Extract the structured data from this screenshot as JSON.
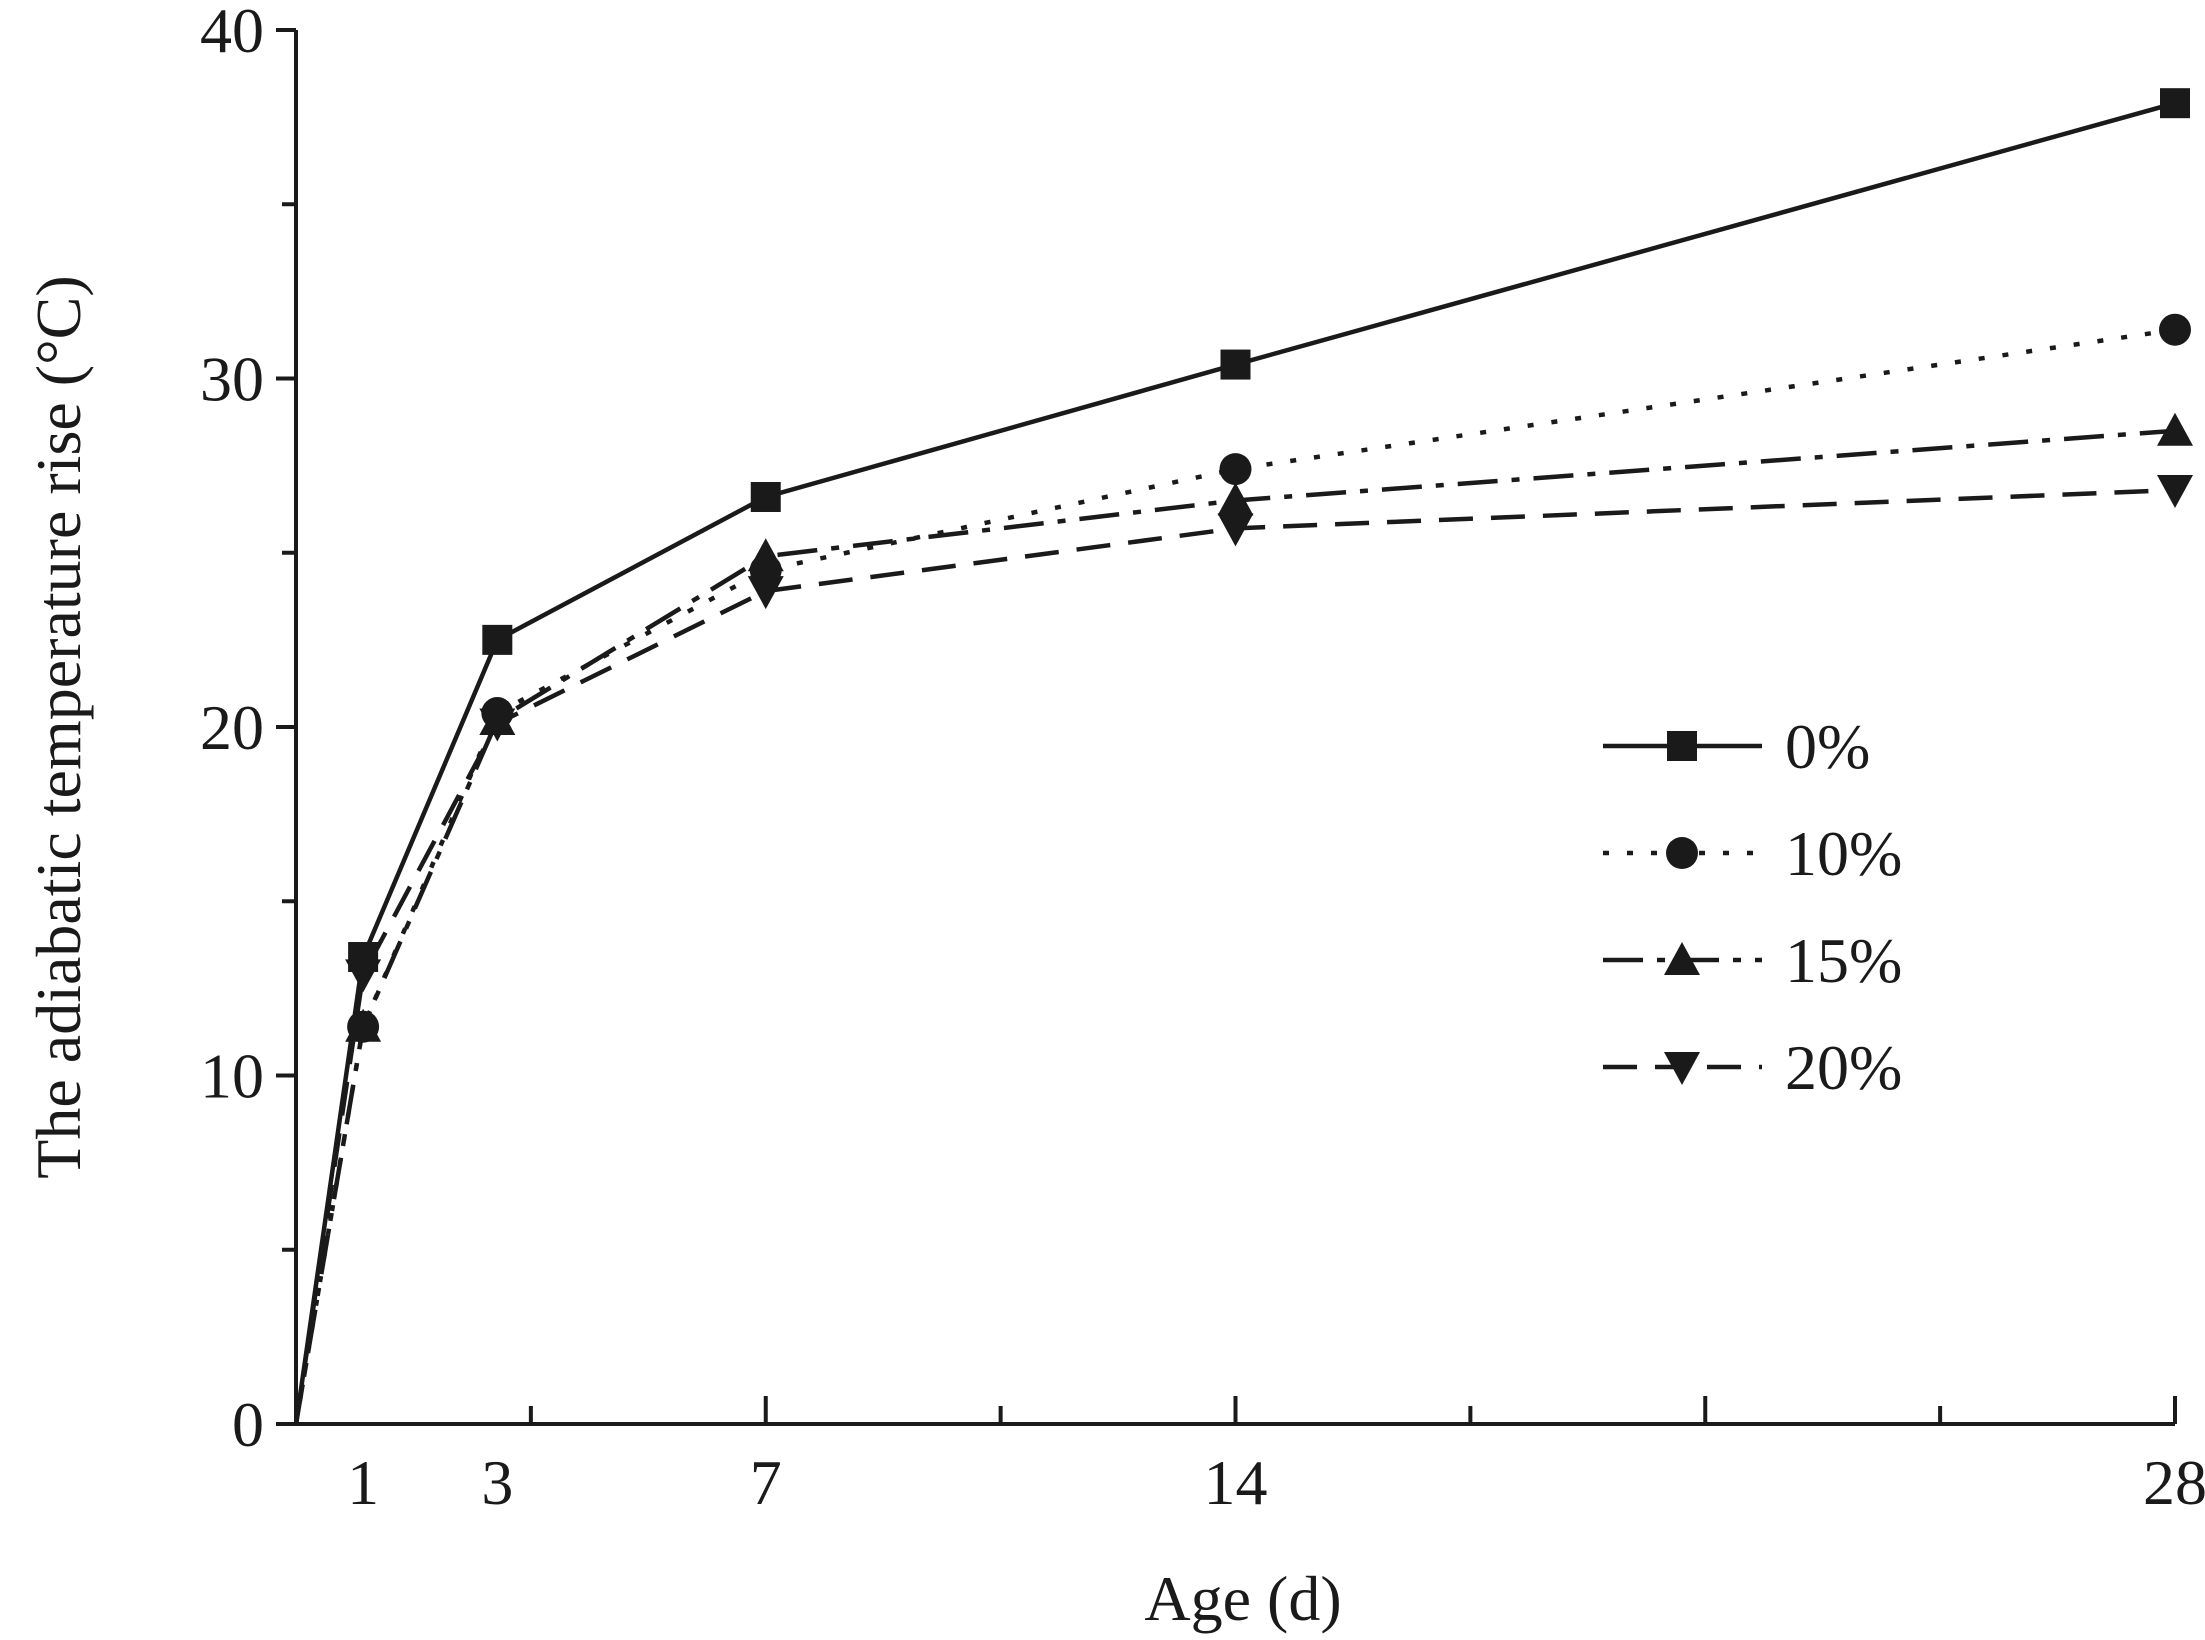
{
  "chart_data": {
    "type": "line",
    "title": "",
    "xlabel": "Age (d)",
    "ylabel": "The adiabatic temperature rise (°C)",
    "xlim": [
      0,
      28
    ],
    "ylim": [
      0,
      40
    ],
    "x_ticks": [
      1,
      3,
      7,
      14,
      28
    ],
    "x_tick_labels": [
      "1",
      "3",
      "7",
      "14",
      "28"
    ],
    "x_minor_ticks": [
      3.5,
      7,
      10.5,
      14,
      17.5,
      21,
      24.5,
      28
    ],
    "y_ticks": [
      0,
      10,
      20,
      30,
      40
    ],
    "y_tick_labels": [
      "0",
      "10",
      "20",
      "30",
      "40"
    ],
    "y_minor_ticks": [
      5,
      15,
      25,
      35
    ],
    "grid": false,
    "legend_position": "right",
    "series": [
      {
        "name": "0%",
        "label": "0%",
        "marker": "square",
        "dash": "solid",
        "x": [
          0,
          1,
          3,
          7,
          14,
          28
        ],
        "values": [
          0,
          13.4,
          22.5,
          26.6,
          30.4,
          37.9
        ]
      },
      {
        "name": "10%",
        "label": "10%",
        "marker": "circle",
        "dash": "dotted",
        "x": [
          0,
          1,
          3,
          7,
          14,
          28
        ],
        "values": [
          0,
          11.4,
          20.4,
          24.5,
          27.4,
          31.4
        ]
      },
      {
        "name": "15%",
        "label": "15%",
        "marker": "triangle-up",
        "dash": "dash-dot",
        "x": [
          0,
          1,
          3,
          7,
          14,
          28
        ],
        "values": [
          0,
          11.4,
          20.2,
          24.9,
          26.5,
          28.5
        ]
      },
      {
        "name": "20%",
        "label": "20%",
        "marker": "triangle-down",
        "dash": "dashed",
        "x": [
          0,
          1,
          3,
          7,
          14,
          28
        ],
        "values": [
          0,
          12.9,
          20.1,
          23.9,
          25.7,
          26.8
        ]
      }
    ]
  }
}
